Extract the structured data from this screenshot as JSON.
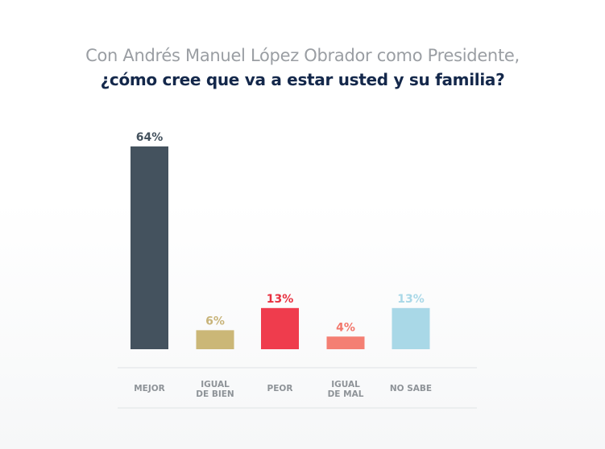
{
  "chart_data": {
    "type": "bar",
    "title": "Con Andrés Manuel López Obrador como Presidente,",
    "subtitle": "¿cómo cree que va a estar usted y su familia?",
    "xlabel": "",
    "ylabel": "",
    "ylim": [
      0,
      64
    ],
    "grid": false,
    "legend": "none",
    "categories": [
      [
        "MEJOR"
      ],
      [
        "IGUAL",
        "DE BIEN"
      ],
      [
        "PEOR"
      ],
      [
        "IGUAL",
        "DE MAL"
      ],
      [
        "NO SABE"
      ]
    ],
    "values": [
      64,
      6,
      13,
      4,
      13
    ],
    "value_labels": [
      "64%",
      "6%",
      "13%",
      "4%",
      "13%"
    ],
    "colors": [
      "#44525e",
      "#cbb777",
      "#ef3c4d",
      "#f47f73",
      "#a9d8e7"
    ],
    "label_colors": [
      "#44525e",
      "#c8b47a",
      "#e8303f",
      "#f2766b",
      "#a9d8e7"
    ]
  }
}
